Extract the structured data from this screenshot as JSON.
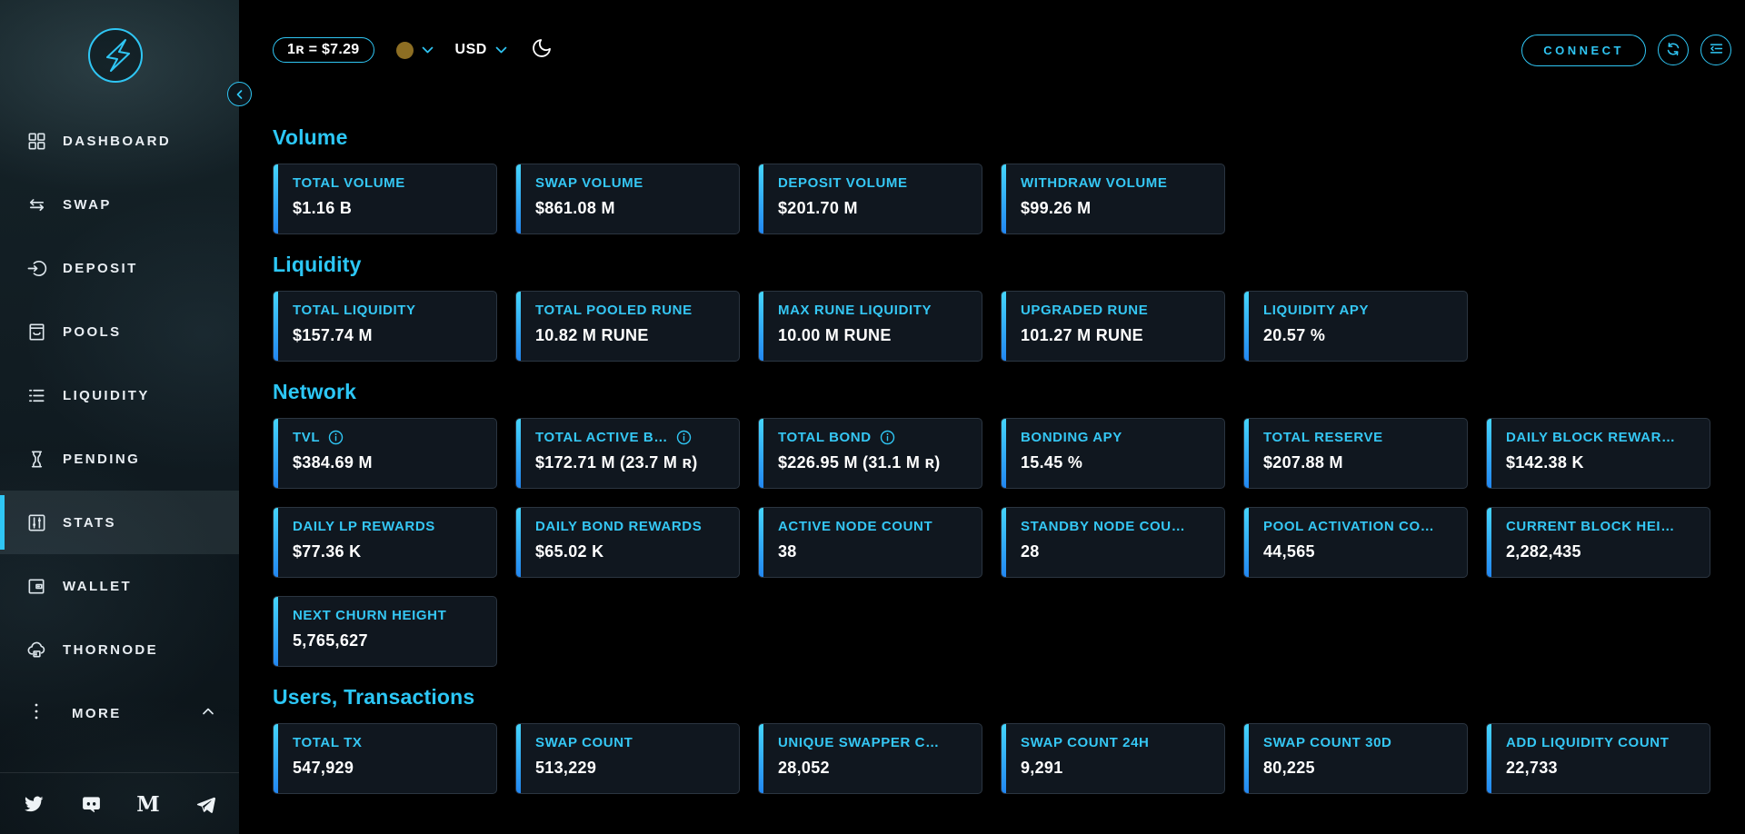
{
  "topbar": {
    "rune_price": "1ʀ = $7.29",
    "currency": "USD",
    "connect_label": "CONNECT",
    "icons": [
      "coin-icon",
      "chevron-down-icon",
      "moon-icon",
      "refresh-icon",
      "panel-toggle-icon"
    ]
  },
  "colors": {
    "accent_cyan": "#2fc6f4",
    "accent_blue": "#2287f2",
    "gold_coin": "#8d6e23",
    "card_bg": "#10171f",
    "section_title": "#2cc7f6",
    "background": "#000000"
  },
  "sidebar": {
    "active_item": "STATS",
    "items": [
      {
        "id": "dashboard",
        "label": "DASHBOARD",
        "icon": "dashboard-grid-icon",
        "active": false
      },
      {
        "id": "swap",
        "label": "SWAP",
        "icon": "swap-arrows-icon",
        "active": false
      },
      {
        "id": "deposit",
        "label": "DEPOSIT",
        "icon": "deposit-icon",
        "active": false
      },
      {
        "id": "pools",
        "label": "POOLS",
        "icon": "pools-icon",
        "active": false
      },
      {
        "id": "liquidity",
        "label": "LIQUIDITY",
        "icon": "liquidity-list-icon",
        "active": false
      },
      {
        "id": "pending",
        "label": "PENDING",
        "icon": "hourglass-icon",
        "active": false
      },
      {
        "id": "stats",
        "label": "STATS",
        "icon": "stats-sliders-icon",
        "active": true
      },
      {
        "id": "wallet",
        "label": "WALLET",
        "icon": "wallet-icon",
        "active": false
      },
      {
        "id": "thornode",
        "label": "THORNODE",
        "icon": "thornode-cloud-icon",
        "active": false
      }
    ],
    "more_label": "MORE",
    "social": [
      {
        "id": "twitter",
        "icon": "twitter-icon"
      },
      {
        "id": "discord",
        "icon": "discord-icon"
      },
      {
        "id": "medium",
        "icon": "medium-icon"
      },
      {
        "id": "telegram",
        "icon": "telegram-icon"
      }
    ]
  },
  "sections": [
    {
      "title": "Volume",
      "rows": [
        [
          {
            "label": "TOTAL VOLUME",
            "value": "$1.16 B"
          },
          {
            "label": "SWAP VOLUME",
            "value": "$861.08 M"
          },
          {
            "label": "DEPOSIT VOLUME",
            "value": "$201.70 M"
          },
          {
            "label": "WITHDRAW VOLUME",
            "value": "$99.26 M"
          }
        ]
      ]
    },
    {
      "title": "Liquidity",
      "rows": [
        [
          {
            "label": "TOTAL LIQUIDITY",
            "value": "$157.74 M"
          },
          {
            "label": "TOTAL POOLED RUNE",
            "value": "10.82 M RUNE"
          },
          {
            "label": "MAX RUNE LIQUIDITY",
            "value": "10.00 M RUNE"
          },
          {
            "label": "UPGRADED RUNE",
            "value": "101.27 M RUNE"
          },
          {
            "label": "LIQUIDITY APY",
            "value": "20.57 %"
          }
        ]
      ]
    },
    {
      "title": "Network",
      "rows": [
        [
          {
            "label": "TVL",
            "value": "$384.69 M",
            "info": true
          },
          {
            "label": "TOTAL ACTIVE B…",
            "value": "$172.71 M (23.7 M ʀ)",
            "info": true
          },
          {
            "label": "TOTAL BOND",
            "value": "$226.95 M (31.1 M ʀ)",
            "info": true
          },
          {
            "label": "BONDING APY",
            "value": "15.45 %"
          },
          {
            "label": "TOTAL RESERVE",
            "value": "$207.88 M"
          },
          {
            "label": "DAILY BLOCK REWAR…",
            "value": "$142.38 K"
          }
        ],
        [
          {
            "label": "DAILY LP REWARDS",
            "value": "$77.36 K"
          },
          {
            "label": "DAILY BOND REWARDS",
            "value": "$65.02 K"
          },
          {
            "label": "ACTIVE NODE COUNT",
            "value": "38"
          },
          {
            "label": "STANDBY NODE COU…",
            "value": "28"
          },
          {
            "label": "POOL ACTIVATION CO…",
            "value": "44,565"
          },
          {
            "label": "CURRENT BLOCK HEI…",
            "value": "2,282,435"
          }
        ],
        [
          {
            "label": "NEXT CHURN HEIGHT",
            "value": "5,765,627"
          }
        ]
      ]
    },
    {
      "title": "Users, Transactions",
      "rows": [
        [
          {
            "label": "TOTAL TX",
            "value": "547,929"
          },
          {
            "label": "SWAP COUNT",
            "value": "513,229"
          },
          {
            "label": "UNIQUE SWAPPER C…",
            "value": "28,052"
          },
          {
            "label": "SWAP COUNT 24H",
            "value": "9,291"
          },
          {
            "label": "SWAP COUNT 30D",
            "value": "80,225"
          },
          {
            "label": "ADD LIQUIDITY COUNT",
            "value": "22,733"
          }
        ]
      ]
    }
  ]
}
